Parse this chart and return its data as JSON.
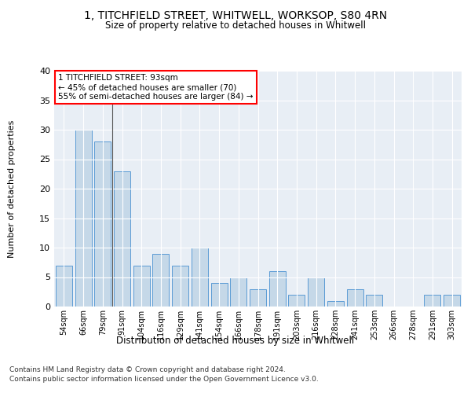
{
  "title1": "1, TITCHFIELD STREET, WHITWELL, WORKSOP, S80 4RN",
  "title2": "Size of property relative to detached houses in Whitwell",
  "xlabel": "Distribution of detached houses by size in Whitwell",
  "ylabel": "Number of detached properties",
  "categories": [
    "54sqm",
    "66sqm",
    "79sqm",
    "91sqm",
    "104sqm",
    "116sqm",
    "129sqm",
    "141sqm",
    "154sqm",
    "166sqm",
    "178sqm",
    "191sqm",
    "203sqm",
    "216sqm",
    "228sqm",
    "241sqm",
    "253sqm",
    "266sqm",
    "278sqm",
    "291sqm",
    "303sqm"
  ],
  "values": [
    7,
    30,
    28,
    23,
    7,
    9,
    7,
    10,
    4,
    5,
    3,
    6,
    2,
    5,
    1,
    3,
    2,
    0,
    0,
    2,
    2
  ],
  "bar_color": "#c5d8e8",
  "bar_edge_color": "#5b9bd5",
  "highlight_line_index": 3,
  "annotation_text": "1 TITCHFIELD STREET: 93sqm\n← 45% of detached houses are smaller (70)\n55% of semi-detached houses are larger (84) →",
  "annotation_box_color": "white",
  "annotation_box_edge": "red",
  "footer1": "Contains HM Land Registry data © Crown copyright and database right 2024.",
  "footer2": "Contains public sector information licensed under the Open Government Licence v3.0.",
  "ylim": [
    0,
    40
  ],
  "yticks": [
    0,
    5,
    10,
    15,
    20,
    25,
    30,
    35,
    40
  ],
  "bg_color": "#e8eef5",
  "grid_color": "white",
  "fig_bg": "white"
}
